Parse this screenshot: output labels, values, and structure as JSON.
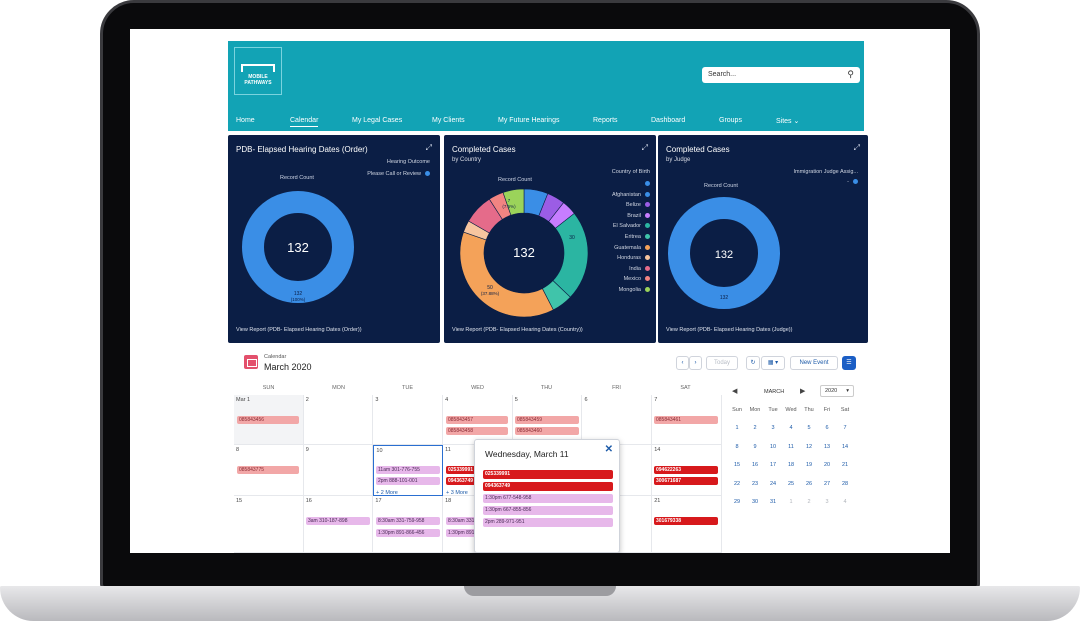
{
  "header": {
    "logo_line1": "MOBILE",
    "logo_line2": "PATHWAYS",
    "search_placeholder": "Search...",
    "nav": [
      "Home",
      "Calendar",
      "My Legal Cases",
      "My Clients",
      "My Future Hearings",
      "Reports",
      "Dashboard",
      "Groups",
      "Sites"
    ],
    "active_nav": "Calendar",
    "colors": {
      "header": "#12a3b5",
      "card": "#0b1e45"
    }
  },
  "cards": [
    {
      "title": "PDB- Elapsed Hearing Dates (Order)",
      "subtitle": "",
      "record_count_label": "Record Count",
      "legend_title": "Hearing Outcome",
      "legend": [
        {
          "label": "Please Call or Review",
          "color": "#3a8ee6"
        }
      ],
      "center_value": "132",
      "slice_label": "132",
      "slice_pct": "(100%)",
      "footer": "View Report (PDB- Elapsed Hearing Dates (Order))"
    },
    {
      "title": "Completed Cases",
      "subtitle": "by Country",
      "record_count_label": "Record Count",
      "legend_title": "Country of Birth",
      "legend": [
        {
          "label": "",
          "color": "#3a8ee6"
        },
        {
          "label": "Afghanistan",
          "color": "#3a8ee6"
        },
        {
          "label": "Belize",
          "color": "#9b5de5"
        },
        {
          "label": "Brazil",
          "color": "#c77dff"
        },
        {
          "label": "El Salvador",
          "color": "#2bb5a2"
        },
        {
          "label": "Eritrea",
          "color": "#40c4aa"
        },
        {
          "label": "Guatemala",
          "color": "#f4a259"
        },
        {
          "label": "Honduras",
          "color": "#f7c59f"
        },
        {
          "label": "India",
          "color": "#e56b8a"
        },
        {
          "label": "Mexico",
          "color": "#f28482"
        },
        {
          "label": "Mongolia",
          "color": "#9bd35a"
        }
      ],
      "center_value": "132",
      "slice_labels": [
        "30",
        "50",
        "(37.88%)",
        "7",
        "(7.6%)"
      ],
      "footer": "View Report (PDB- Elapsed Hearing Dates (Country))"
    },
    {
      "title": "Completed Cases",
      "subtitle": "by Judge",
      "record_count_label": "Record Count",
      "legend_title": "Immigration Judge Assig...",
      "legend": [
        {
          "label": "-",
          "color": "#3a8ee6"
        }
      ],
      "center_value": "132",
      "slice_label": "132",
      "footer": "View Report (PDB- Elapsed Hearing Dates (Judge))"
    }
  ],
  "chart_data": [
    {
      "type": "pie",
      "title": "PDB- Elapsed Hearing Dates (Order)",
      "categories": [
        "Please Call or Review"
      ],
      "values": [
        132
      ]
    },
    {
      "type": "pie",
      "title": "Completed Cases",
      "categories": [
        "Afghanistan",
        "Belize",
        "Brazil",
        "El Salvador",
        "Eritrea",
        "Guatemala",
        "Honduras",
        "India",
        "Mexico",
        "Mongolia"
      ],
      "values": [
        8,
        6,
        5,
        30,
        7,
        50,
        4,
        10,
        5,
        7
      ]
    },
    {
      "type": "pie",
      "title": "Completed Cases",
      "categories": [
        "-"
      ],
      "values": [
        132
      ]
    }
  ],
  "calendar": {
    "label": "Calendar",
    "month": "March 2020",
    "today_btn": "Today",
    "new_event_btn": "New Event",
    "weekdays": [
      "SUN",
      "MON",
      "TUE",
      "WED",
      "THU",
      "FRI",
      "SAT"
    ],
    "week_dates": [
      [
        "Mar 1",
        "2",
        "3",
        "4",
        "5",
        "6",
        "7"
      ],
      [
        "8",
        "9",
        "10",
        "11",
        "12",
        "13",
        "14"
      ],
      [
        "15",
        "16",
        "17",
        "18",
        "19",
        "20",
        "21"
      ]
    ],
    "events": {
      "w1_sun": "085843456",
      "w1_wed_a": "085843457",
      "w1_wed_b": "085843458",
      "w1_thu_a": "085843459",
      "w1_thu_b": "085843460",
      "w1_sat": "085843461",
      "w2_sun": "085843775",
      "w2_tue_a": "11am 301-776-755",
      "w2_tue_b": "2pm 888-101-001",
      "w2_wed_a": "025339991",
      "w2_wed_b": "094363749",
      "w2_sat_a": "094622263",
      "w2_sat_b": "300671687",
      "w3_mon": "3am 310-187-898",
      "w3_tue_a": "8:30am 331-759-958",
      "w3_tue_b": "1:30pm 891-866-456",
      "w3_wed_a": "8:30am 331-755-908",
      "w3_wed_b": "1:30pm 891-866-456",
      "w3_sat": "301679338"
    },
    "more_tue": "+ 2 More",
    "more_wed": "+ 3 More",
    "popover": {
      "title": "Wednesday, March 11",
      "events": [
        "025339991",
        "094363749",
        "1:30pm 677-548-958",
        "1:30pm 667-855-856",
        "2pm 289-971-951"
      ]
    },
    "mini": {
      "month": "MARCH",
      "year": "2020",
      "weekdays": [
        "Sun",
        "Mon",
        "Tue",
        "Wed",
        "Thu",
        "Fri",
        "Sat"
      ],
      "days": [
        "1",
        "2",
        "3",
        "4",
        "5",
        "6",
        "7",
        "8",
        "9",
        "10",
        "11",
        "12",
        "13",
        "14",
        "15",
        "16",
        "17",
        "18",
        "19",
        "20",
        "21",
        "22",
        "23",
        "24",
        "25",
        "26",
        "27",
        "28",
        "29",
        "30",
        "31",
        "1",
        "2",
        "3",
        "4"
      ]
    }
  }
}
